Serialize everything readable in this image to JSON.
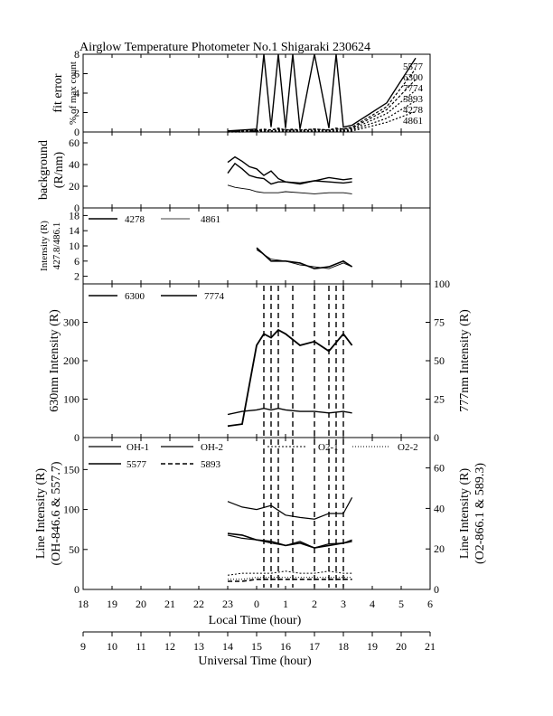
{
  "title": "Airglow Temperature Photometer No.1  Shigaraki  230624",
  "axes": {
    "local_time_label": "Local Time (hour)",
    "universal_time_label": "Universal Time (hour)",
    "local_time_ticks": [
      "18",
      "19",
      "20",
      "21",
      "22",
      "23",
      "0",
      "1",
      "2",
      "3",
      "4",
      "5",
      "6"
    ],
    "universal_time_ticks": [
      "9",
      "10",
      "11",
      "12",
      "13",
      "14",
      "15",
      "16",
      "17",
      "18",
      "19",
      "20",
      "21"
    ]
  },
  "panels": {
    "fit_error": {
      "ylabel1": "fit error",
      "ylabel2": "% of max count",
      "yticks": [
        "0",
        "2",
        "4",
        "6",
        "8"
      ],
      "series_labels": [
        "5577",
        "6300",
        "7774",
        "5893",
        "4278",
        "4861"
      ]
    },
    "background": {
      "ylabel1": "background",
      "ylabel2": "(R/nm)",
      "yticks": [
        "0",
        "20",
        "40",
        "60"
      ]
    },
    "blue": {
      "ylabel1": "Intensity (R)",
      "ylabel2": "427.8/486.1",
      "yticks": [
        "2",
        "6",
        "10",
        "14",
        "18"
      ],
      "legend": [
        "4278",
        "4861"
      ]
    },
    "red": {
      "ylabel_left": "630nm Intensity (R)",
      "ylabel_right": "777nm Intensity (R)",
      "yticks_left": [
        "0",
        "100",
        "200",
        "300"
      ],
      "yticks_right": [
        "0",
        "25",
        "50",
        "75",
        "100"
      ],
      "legend": [
        "6300",
        "7774"
      ]
    },
    "line": {
      "ylabel_left1": "Line Intensity (R)",
      "ylabel_left2": "(OH-846.6 & 557.7)",
      "ylabel_right1": "Line Intensity (R)",
      "ylabel_right2": "(O2-866.1 & 589.3)",
      "yticks_left": [
        "0",
        "50",
        "100",
        "150"
      ],
      "yticks_right": [
        "0",
        "20",
        "40",
        "60"
      ],
      "legend": [
        "OH-1",
        "OH-2",
        "O2-1",
        "O2-2",
        "5577",
        "5893"
      ]
    }
  },
  "chart_data": [
    {
      "type": "line",
      "title": "fit error",
      "ylabel": "fit error % of max count",
      "xlabel": "Local Time (hour)",
      "ylim": [
        0,
        8
      ],
      "x": [
        23.0,
        23.5,
        24.0,
        24.25,
        24.5,
        24.75,
        25.0,
        25.25,
        25.5,
        26.0,
        26.5,
        26.75,
        27.0,
        27.3,
        28.5,
        29.5
      ],
      "series": [
        {
          "name": "5577",
          "values": [
            0.1,
            0.2,
            0.3,
            8.0,
            0.5,
            8.0,
            0.4,
            8.0,
            0.3,
            8.0,
            0.4,
            8.0,
            0.5,
            0.7,
            3.0,
            7.6
          ]
        },
        {
          "name": "6300",
          "values": [
            0.1,
            0.1,
            0.2,
            0.3,
            0.2,
            0.4,
            0.2,
            0.3,
            0.2,
            0.3,
            0.2,
            0.4,
            0.3,
            0.5,
            2.6,
            6.5
          ]
        },
        {
          "name": "7774",
          "values": [
            0.1,
            0.1,
            0.1,
            0.2,
            0.2,
            0.3,
            0.2,
            0.2,
            0.2,
            0.3,
            0.2,
            0.3,
            0.3,
            0.4,
            2.3,
            5.4
          ]
        },
        {
          "name": "5893",
          "values": [
            0.1,
            0.1,
            0.1,
            0.2,
            0.1,
            0.2,
            0.2,
            0.2,
            0.1,
            0.2,
            0.2,
            0.2,
            0.2,
            0.3,
            1.9,
            4.3
          ]
        },
        {
          "name": "4278",
          "values": [
            0.0,
            0.1,
            0.1,
            0.1,
            0.1,
            0.1,
            0.1,
            0.1,
            0.1,
            0.1,
            0.1,
            0.1,
            0.1,
            0.2,
            1.4,
            3.2
          ]
        },
        {
          "name": "4861",
          "values": [
            0.0,
            0.0,
            0.1,
            0.1,
            0.1,
            0.1,
            0.1,
            0.1,
            0.1,
            0.1,
            0.1,
            0.1,
            0.1,
            0.1,
            1.0,
            2.1
          ]
        }
      ]
    },
    {
      "type": "line",
      "title": "background",
      "ylabel": "background (R/nm)",
      "ylim": [
        0,
        70
      ],
      "x": [
        23.0,
        23.25,
        23.5,
        23.75,
        24.0,
        24.25,
        24.5,
        24.75,
        25.0,
        25.5,
        26.0,
        26.5,
        27.0,
        27.3
      ],
      "series": [
        {
          "values": [
            42,
            47,
            43,
            38,
            36,
            30,
            34,
            27,
            24,
            23,
            25,
            28,
            26,
            27
          ]
        },
        {
          "values": [
            32,
            41,
            36,
            30,
            28,
            27,
            22,
            24,
            24,
            22,
            25,
            24,
            23,
            24
          ]
        },
        {
          "values": [
            21,
            19,
            18,
            17,
            15,
            14,
            14,
            14,
            15,
            14,
            13,
            14,
            14,
            13
          ]
        }
      ]
    },
    {
      "type": "line",
      "title": "Intensity 427.8/486.1",
      "ylabel": "Intensity (R)",
      "ylim": [
        0,
        20
      ],
      "x": [
        24.0,
        24.5,
        25.0,
        25.5,
        26.0,
        26.5,
        27.0,
        27.3
      ],
      "series": [
        {
          "name": "4278",
          "values": [
            9.5,
            6.0,
            6.0,
            5.5,
            4.0,
            4.5,
            6.0,
            4.5
          ]
        },
        {
          "name": "4861",
          "values": [
            9.0,
            6.5,
            6.0,
            5.0,
            4.5,
            4.0,
            5.5,
            4.5
          ]
        }
      ]
    },
    {
      "type": "line",
      "title": "630nm / 777nm Intensity",
      "ylabel": "630nm Intensity (R)",
      "y2label": "777nm Intensity (R)",
      "ylim": [
        0,
        400
      ],
      "y2lim": [
        0,
        100
      ],
      "x": [
        23.0,
        23.5,
        24.0,
        24.25,
        24.5,
        24.75,
        25.0,
        25.5,
        26.0,
        26.5,
        27.0,
        27.3
      ],
      "series": [
        {
          "name": "6300",
          "values": [
            30,
            35,
            240,
            270,
            260,
            280,
            270,
            240,
            250,
            225,
            270,
            240
          ]
        },
        {
          "name": "7774",
          "values": [
            15,
            17,
            18,
            19,
            18,
            19,
            18,
            17,
            17,
            16,
            17,
            16
          ]
        }
      ]
    },
    {
      "type": "line",
      "title": "Line Intensity",
      "ylabel": "Line Intensity (R) (OH-846.6 & 557.7)",
      "y2label": "Line Intensity (R) (O2-866.1 & 589.3)",
      "ylim": [
        0,
        190
      ],
      "y2lim": [
        0,
        75
      ],
      "x": [
        23.0,
        23.5,
        24.0,
        24.5,
        25.0,
        25.5,
        26.0,
        26.5,
        27.0,
        27.3
      ],
      "series": [
        {
          "name": "OH-1",
          "values": [
            110,
            103,
            100,
            105,
            93,
            90,
            88,
            95,
            95,
            115
          ]
        },
        {
          "name": "OH-2",
          "values": [
            68,
            64,
            62,
            58,
            55,
            60,
            52,
            57,
            58,
            62
          ]
        },
        {
          "name": "O2-1",
          "values": [
            7,
            8,
            8,
            8,
            9,
            8,
            8,
            9,
            8,
            8
          ]
        },
        {
          "name": "O2-2",
          "values": [
            5,
            5,
            6,
            6,
            6,
            6,
            6,
            6,
            6,
            6
          ]
        },
        {
          "name": "5577",
          "values": [
            70,
            68,
            62,
            60,
            55,
            58,
            52,
            55,
            58,
            60
          ]
        },
        {
          "name": "5893",
          "values": [
            4,
            4,
            5,
            5,
            5,
            5,
            5,
            5,
            5,
            5
          ]
        }
      ]
    }
  ]
}
